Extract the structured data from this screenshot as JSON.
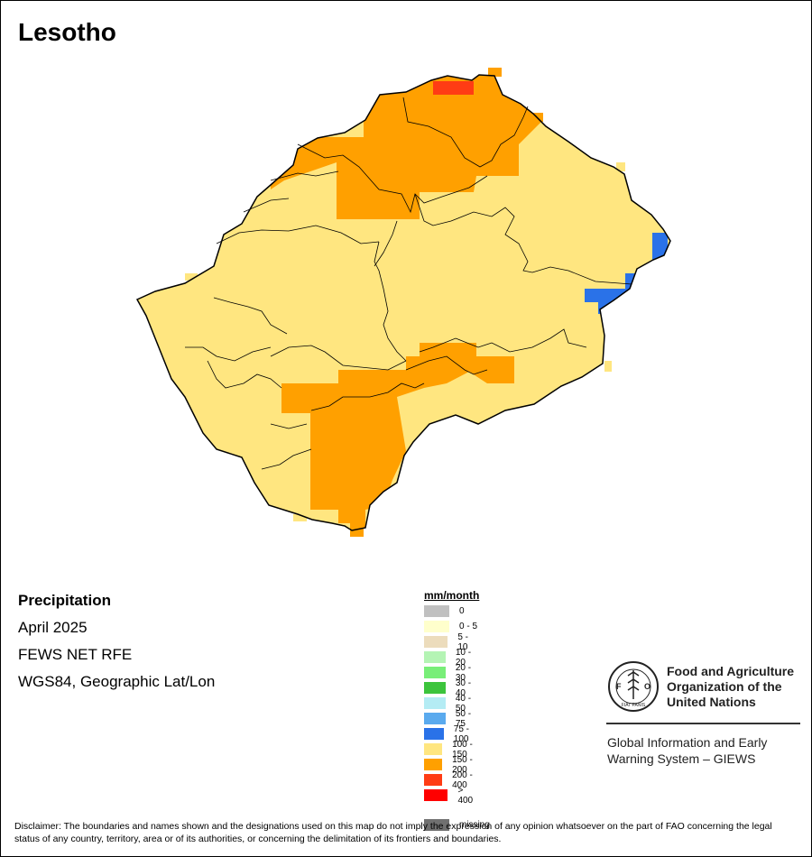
{
  "map": {
    "title": "Lesotho",
    "variable": "Precipitation",
    "period": "April 2025",
    "source": "FEWS NET RFE",
    "projection": "WGS84, Geographic Lat/Lon"
  },
  "legend": {
    "unit": "mm/month",
    "classes": [
      {
        "label": "0",
        "color": "#c0c0c0"
      },
      {
        "label": "0 - 5",
        "color": "#ffffcc"
      },
      {
        "label": "5 - 10",
        "color": "#ecdcbc"
      },
      {
        "label": "10 - 20",
        "color": "#b4f4b4"
      },
      {
        "label": "20 - 30",
        "color": "#78ee78"
      },
      {
        "label": "30 - 40",
        "color": "#3cc43c"
      },
      {
        "label": "40 - 50",
        "color": "#b4ecf4"
      },
      {
        "label": "50 - 75",
        "color": "#5aaaee"
      },
      {
        "label": "75 - 100",
        "color": "#2a72e8"
      },
      {
        "label": "100 - 150",
        "color": "#ffe680"
      },
      {
        "label": "150 - 200",
        "color": "#ffa000"
      },
      {
        "label": "200 - 400",
        "color": "#ff3c14"
      },
      {
        "label": "> 400",
        "color": "#ff0000"
      },
      {
        "label": "missing",
        "color": "#707070"
      }
    ]
  },
  "org": {
    "name_line1": "Food and Agriculture",
    "name_line2": "Organization of the",
    "name_line3": "United Nations",
    "system_line1": "Global Information and Early",
    "system_line2": "Warning System – GIEWS",
    "logo_text": "FAO",
    "motto": "FIAT PANIS"
  },
  "disclaimer": "Disclaimer: The boundaries and names shown and the designations used on this map do not imply the expression of any opinion whatsoever on the part of FAO concerning the legal status of any country, territory, area or of its authorities, or concerning the delimitation of its frontiers and boundaries."
}
